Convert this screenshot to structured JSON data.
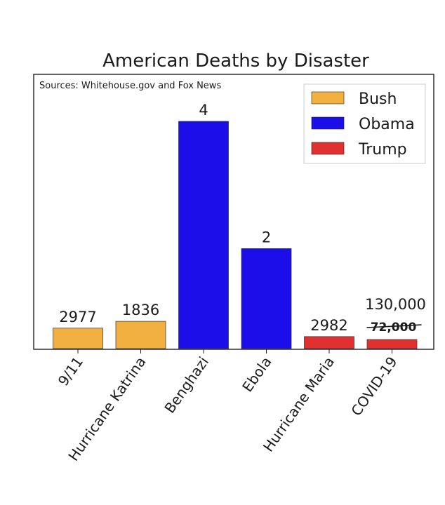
{
  "chart_data": {
    "type": "bar",
    "title": "American Deaths by Disaster",
    "annotation": "Sources: Whitehouse.gov and Fox News",
    "xlabel": "",
    "ylabel": "",
    "legend_position": "top-right",
    "legend": [
      {
        "name": "Bush",
        "color": "#f2b040"
      },
      {
        "name": "Obama",
        "color": "#1b0ee8"
      },
      {
        "name": "Trump",
        "color": "#e03030"
      }
    ],
    "categories": [
      "9/11",
      "Hurricane Katrina",
      "Benghazi",
      "Ebola",
      "Hurricane Maria",
      "COVID-19"
    ],
    "bars": [
      {
        "category": "9/11",
        "group": "Bush",
        "label": "2977",
        "color": "#f2b040",
        "relative_height": 0.09
      },
      {
        "category": "Hurricane Katrina",
        "group": "Bush",
        "label": "1836",
        "color": "#f2b040",
        "relative_height": 0.12
      },
      {
        "category": "Benghazi",
        "group": "Obama",
        "label": "4",
        "color": "#1b0ee8",
        "relative_height": 1.0
      },
      {
        "category": "Ebola",
        "group": "Obama",
        "label": "2",
        "color": "#1b0ee8",
        "relative_height": 0.44
      },
      {
        "category": "Hurricane Maria",
        "group": "Trump",
        "label": "2982",
        "color": "#e03030",
        "relative_height": 0.053
      },
      {
        "category": "COVID-19",
        "group": "Trump",
        "label": "130,000",
        "struck_label": "72,000",
        "color": "#e03030",
        "relative_height": 0.04
      }
    ],
    "grid": false
  }
}
